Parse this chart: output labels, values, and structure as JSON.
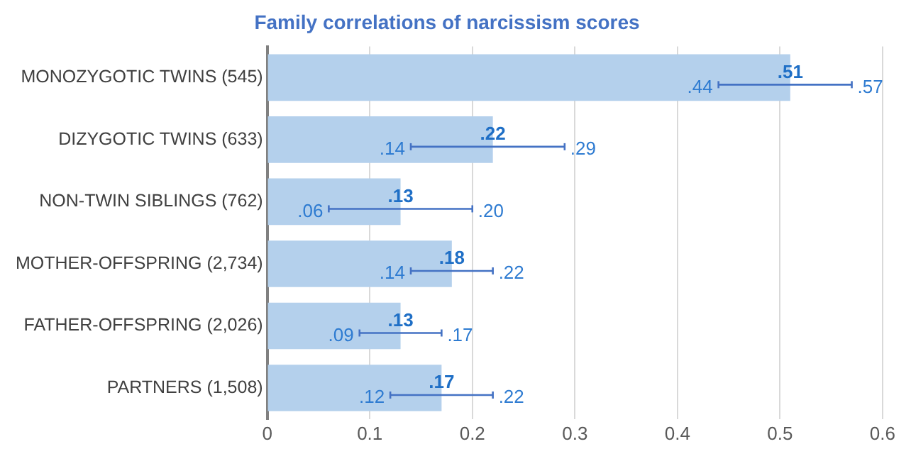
{
  "chart_data": {
    "type": "bar",
    "orientation": "horizontal",
    "title": "Family correlations of narcissism scores",
    "categories": [
      "MONOZYGOTIC TWINS (545)",
      "DIZYGOTIC TWINS (633)",
      "NON-TWIN SIBLINGS (762)",
      "MOTHER-OFFSPRING (2,734)",
      "FATHER-OFFSPRING (2,026)",
      "PARTNERS (1,508)"
    ],
    "values": [
      0.51,
      0.22,
      0.13,
      0.18,
      0.13,
      0.17
    ],
    "value_labels": [
      ".51",
      ".22",
      ".13",
      ".18",
      ".13",
      ".17"
    ],
    "errors": [
      [
        0.44,
        0.57
      ],
      [
        0.14,
        0.29
      ],
      [
        0.06,
        0.2
      ],
      [
        0.14,
        0.22
      ],
      [
        0.09,
        0.17
      ],
      [
        0.12,
        0.22
      ]
    ],
    "annotations": [
      ".44",
      ".57",
      ".14",
      ".29",
      ".06",
      ".20",
      ".14",
      ".22",
      ".09",
      ".17",
      ".12",
      ".22"
    ],
    "color": "#b4d0ec",
    "xlim": [
      0,
      0.6
    ],
    "xticks": [
      0,
      0.1,
      0.2,
      0.3,
      0.4,
      0.5,
      0.6
    ],
    "grid": "x",
    "legend": false
  }
}
